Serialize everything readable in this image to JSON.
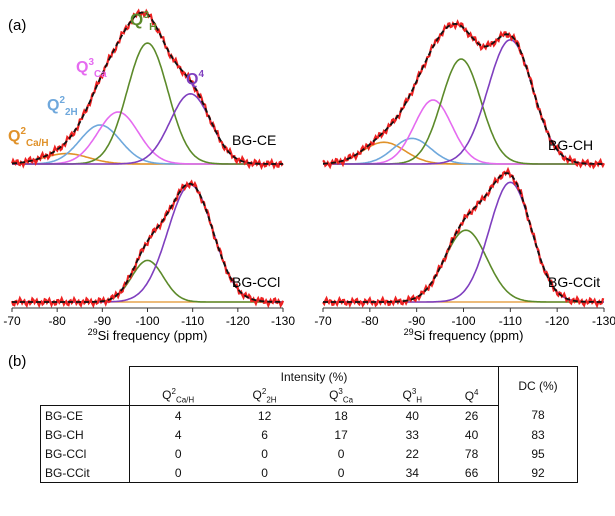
{
  "panel_a_label": "(a)",
  "panel_b_label": "(b)",
  "colors": {
    "Q2CaH": "#e0922a",
    "Q22H": "#6fa8dc",
    "Q3Ca": "#e56bf0",
    "Q3H": "#5c8a2a",
    "Q4": "#7f3fbf",
    "experimental": "#ee2222",
    "fit": "#111111"
  },
  "peak_labels": {
    "Q2CaH": {
      "base": "Q",
      "sup": "2",
      "sub": "Ca/H"
    },
    "Q22H": {
      "base": "Q",
      "sup": "2",
      "sub": "2H"
    },
    "Q3Ca": {
      "base": "Q",
      "sup": "3",
      "sub": "Ca"
    },
    "Q3H": {
      "base": "Q",
      "sup": "3",
      "sub": "H"
    },
    "Q4": {
      "base": "Q",
      "sup": "4",
      "sub": ""
    }
  },
  "chart_data": [
    {
      "type": "line",
      "sample": "BG-CE",
      "xlabel_sup": "29",
      "xlabel": "Si frequency (ppm)",
      "xticks": [
        -70,
        -80,
        -90,
        -100,
        -110,
        -120,
        -130
      ],
      "xlim": [
        -70,
        -130
      ],
      "components": [
        {
          "key": "Q2CaH",
          "center": -82,
          "width": 5,
          "height": 0.08
        },
        {
          "key": "Q22H",
          "center": -89.5,
          "width": 4.5,
          "height": 0.3
        },
        {
          "key": "Q3Ca",
          "center": -93.5,
          "width": 4.5,
          "height": 0.4
        },
        {
          "key": "Q3H",
          "center": -100,
          "width": 4.5,
          "height": 0.93
        },
        {
          "key": "Q4",
          "center": -109.5,
          "width": 4.5,
          "height": 0.54
        }
      ]
    },
    {
      "type": "line",
      "sample": "BG-CH",
      "xlabel_sup": "29",
      "xlabel": "Si frequency (ppm)",
      "xticks": [
        -70,
        -80,
        -90,
        -100,
        -110,
        -120,
        -130
      ],
      "xlim": [
        -70,
        -130
      ],
      "components": [
        {
          "key": "Q2CaH",
          "center": -83,
          "width": 4.5,
          "height": 0.17
        },
        {
          "key": "Q22H",
          "center": -89,
          "width": 4,
          "height": 0.2
        },
        {
          "key": "Q3Ca",
          "center": -93.5,
          "width": 4,
          "height": 0.5
        },
        {
          "key": "Q3H",
          "center": -99.5,
          "width": 4.2,
          "height": 0.82
        },
        {
          "key": "Q4",
          "center": -110,
          "width": 4.8,
          "height": 0.97
        }
      ]
    },
    {
      "type": "line",
      "sample": "BG-CCl",
      "xlabel_sup": "29",
      "xlabel": "Si frequency (ppm)",
      "xticks": [
        -70,
        -80,
        -90,
        -100,
        -110,
        -120,
        -130
      ],
      "xlim": [
        -70,
        -130
      ],
      "components": [
        {
          "key": "Q3H",
          "center": -100,
          "width": 3.5,
          "height": 0.33
        },
        {
          "key": "Q4",
          "center": -109.5,
          "width": 5,
          "height": 0.93
        }
      ]
    },
    {
      "type": "line",
      "sample": "BG-CCit",
      "xlabel_sup": "29",
      "xlabel": "Si frequency (ppm)",
      "xticks": [
        -70,
        -80,
        -90,
        -100,
        -110,
        -120,
        -130
      ],
      "xlim": [
        -70,
        -130
      ],
      "components": [
        {
          "key": "Q3H",
          "center": -100.5,
          "width": 4.5,
          "height": 0.57
        },
        {
          "key": "Q4",
          "center": -110,
          "width": 4.5,
          "height": 0.95
        }
      ]
    },
    {
      "type": "table",
      "header_group": "Intensity (%)",
      "columns": [
        "Q2Ca/H",
        "Q22H",
        "Q3Ca",
        "Q3H",
        "Q4",
        "DC (%)"
      ],
      "rows": [
        {
          "sample": "BG-CE",
          "values": [
            4,
            12,
            18,
            40,
            26,
            78
          ]
        },
        {
          "sample": "BG-CH",
          "values": [
            4,
            6,
            17,
            33,
            40,
            83
          ]
        },
        {
          "sample": "BG-CCl",
          "values": [
            0,
            0,
            0,
            22,
            78,
            95
          ]
        },
        {
          "sample": "BG-CCit",
          "values": [
            0,
            0,
            0,
            34,
            66,
            92
          ]
        }
      ]
    }
  ],
  "table": {
    "header_group": "Intensity (%)",
    "col_q2cah": {
      "base": "Q",
      "sup": "2",
      "sub": "Ca/H"
    },
    "col_q22h": {
      "base": "Q",
      "sup": "2",
      "sub": "2H"
    },
    "col_q3ca": {
      "base": "Q",
      "sup": "3",
      "sub": "Ca"
    },
    "col_q3h": {
      "base": "Q",
      "sup": "3",
      "sub": "H"
    },
    "col_q4": {
      "base": "Q",
      "sup": "4"
    },
    "col_dc": "DC (%)",
    "rows": [
      {
        "sample": "BG-CE",
        "q2cah": "4",
        "q22h": "12",
        "q3ca": "18",
        "q3h": "40",
        "q4": "26",
        "dc": "78"
      },
      {
        "sample": "BG-CH",
        "q2cah": "4",
        "q22h": "6",
        "q3ca": "17",
        "q3h": "33",
        "q4": "40",
        "dc": "83"
      },
      {
        "sample": "BG-CCl",
        "q2cah": "0",
        "q22h": "0",
        "q3ca": "0",
        "q3h": "22",
        "q4": "78",
        "dc": "95"
      },
      {
        "sample": "BG-CCit",
        "q2cah": "0",
        "q22h": "0",
        "q3ca": "0",
        "q3h": "34",
        "q4": "66",
        "dc": "92"
      }
    ]
  }
}
